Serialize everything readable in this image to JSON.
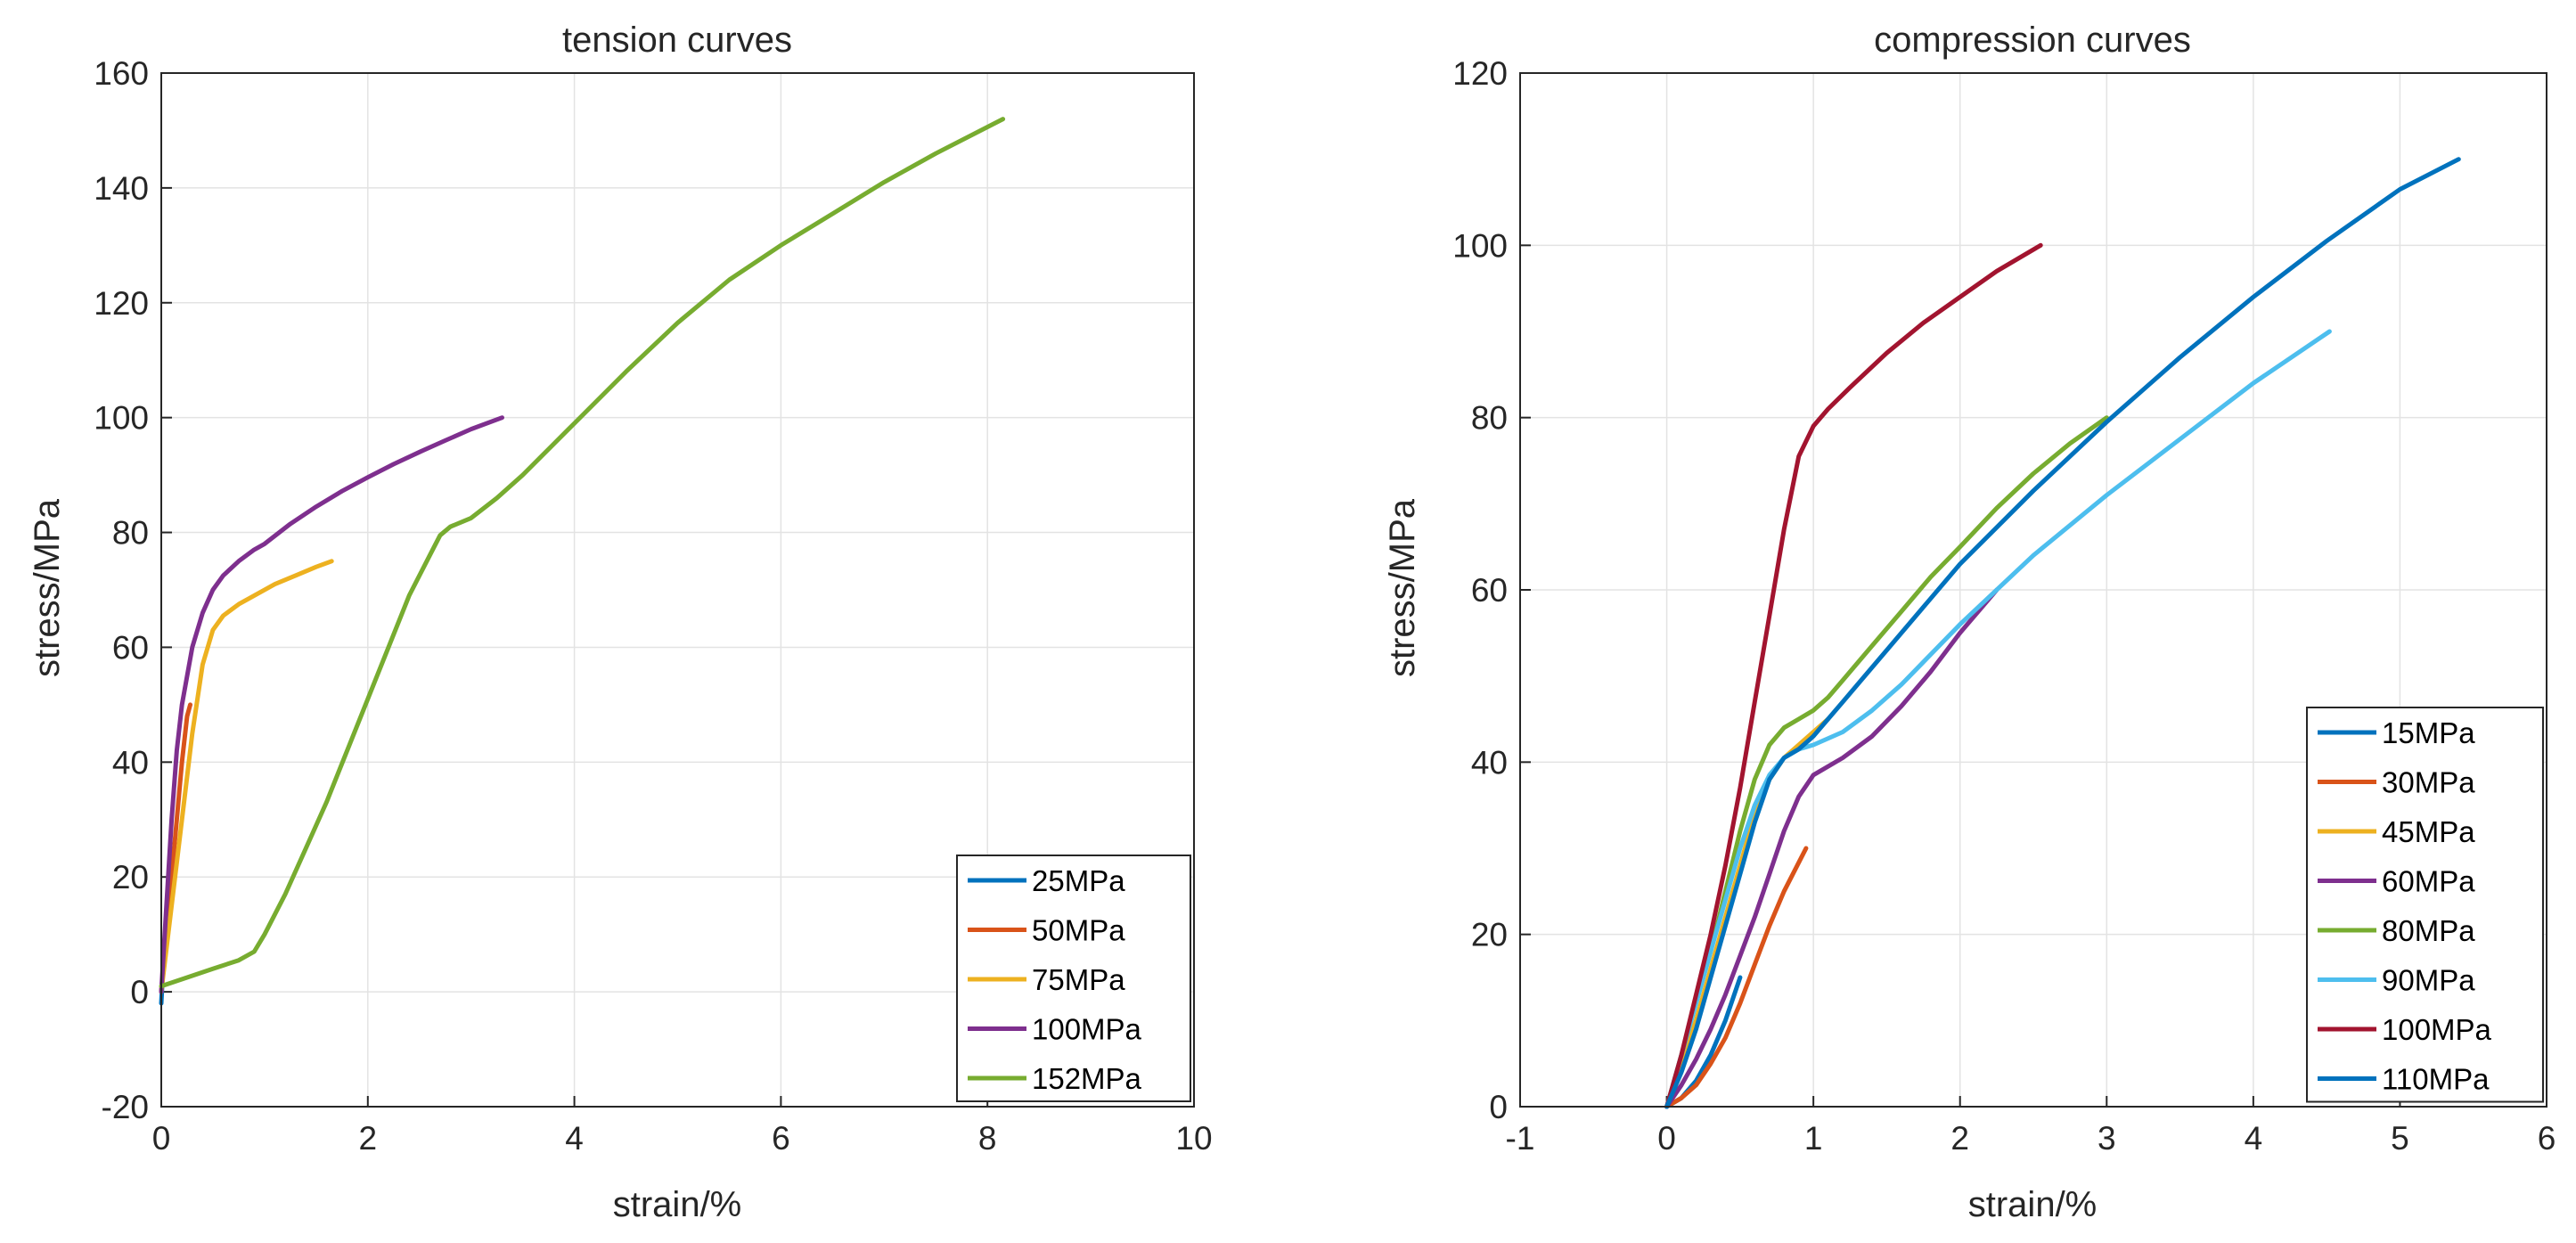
{
  "chart_data": [
    {
      "type": "line",
      "title": "tension curves",
      "xlabel": "strain/%",
      "ylabel": "stress/MPa",
      "xlim": [
        0,
        10
      ],
      "ylim": [
        -20,
        160
      ],
      "xticks": [
        0,
        2,
        4,
        6,
        8,
        10
      ],
      "yticks": [
        -20,
        0,
        20,
        40,
        60,
        80,
        100,
        120,
        140,
        160
      ],
      "xtick_labels": [
        "0",
        "2",
        "4",
        "6",
        "8",
        "10"
      ],
      "ytick_labels": [
        "-20",
        "0",
        "20",
        "40",
        "60",
        "80",
        "100",
        "120",
        "140",
        "160"
      ],
      "grid": true,
      "legend_position": "bottom-right",
      "series": [
        {
          "name": "25MPa",
          "color": "#0072BD",
          "x": [
            0,
            0.02,
            0.05,
            0.08,
            0.12
          ],
          "y": [
            -2,
            5,
            12,
            19,
            25
          ]
        },
        {
          "name": "50MPa",
          "color": "#D95319",
          "x": [
            0,
            0.05,
            0.1,
            0.15,
            0.2,
            0.25,
            0.28
          ],
          "y": [
            0,
            10,
            20,
            30,
            40,
            48,
            50
          ]
        },
        {
          "name": "75MPa",
          "color": "#EDB120",
          "x": [
            0,
            0.1,
            0.2,
            0.3,
            0.4,
            0.5,
            0.6,
            0.75,
            0.9,
            1.1,
            1.3,
            1.5,
            1.65
          ],
          "y": [
            0,
            15,
            30,
            45,
            57,
            63,
            65.5,
            67.5,
            69,
            71,
            72.5,
            74,
            75
          ]
        },
        {
          "name": "100MPa",
          "color": "#7E2F8E",
          "x": [
            0,
            0.05,
            0.1,
            0.15,
            0.2,
            0.3,
            0.4,
            0.5,
            0.6,
            0.75,
            0.9,
            1.0,
            1.25,
            1.5,
            1.75,
            2.0,
            2.25,
            2.5,
            2.75,
            3.0,
            3.3
          ],
          "y": [
            0,
            15,
            30,
            42,
            50,
            60,
            66,
            70,
            72.5,
            75,
            77,
            78,
            81.5,
            84.5,
            87.2,
            89.6,
            91.9,
            94,
            96,
            98,
            100
          ]
        },
        {
          "name": "152MPa",
          "color": "#77AC30",
          "x": [
            0,
            0.25,
            0.5,
            0.75,
            0.9,
            1.0,
            1.2,
            1.4,
            1.6,
            1.8,
            2.0,
            2.2,
            2.4,
            2.6,
            2.7,
            2.8,
            3.0,
            3.25,
            3.5,
            3.75,
            4.0,
            4.5,
            5.0,
            5.5,
            6.0,
            6.5,
            7.0,
            7.5,
            8.15
          ],
          "y": [
            1,
            2.5,
            4,
            5.5,
            7,
            10,
            17,
            25,
            33,
            42,
            51,
            60,
            69,
            76,
            79.5,
            81,
            82.5,
            86,
            90,
            94.5,
            99,
            108,
            116.5,
            124,
            130,
            135.5,
            141,
            146,
            152
          ]
        }
      ]
    },
    {
      "type": "line",
      "title": "compression curves",
      "xlabel": "strain/%",
      "ylabel": "stress/MPa",
      "xlim": [
        -1,
        6
      ],
      "ylim": [
        0,
        120
      ],
      "xticks": [
        -1,
        0,
        1,
        2,
        3,
        4,
        5,
        6
      ],
      "yticks": [
        0,
        20,
        40,
        60,
        80,
        100,
        120
      ],
      "xtick_labels": [
        "-1",
        "0",
        "1",
        "2",
        "3",
        "4",
        "5",
        "6"
      ],
      "ytick_labels": [
        "0",
        "20",
        "40",
        "60",
        "80",
        "100",
        "120"
      ],
      "grid": true,
      "legend_position": "bottom-right",
      "series": [
        {
          "name": "15MPa",
          "color": "#0072BD",
          "x": [
            0,
            0.1,
            0.2,
            0.3,
            0.4,
            0.5
          ],
          "y": [
            0,
            1,
            3,
            6,
            10,
            15
          ]
        },
        {
          "name": "30MPa",
          "color": "#D95319",
          "x": [
            0,
            0.1,
            0.2,
            0.3,
            0.4,
            0.5,
            0.6,
            0.7,
            0.8,
            0.95
          ],
          "y": [
            0,
            1,
            2.5,
            5,
            8,
            12,
            16.5,
            21,
            25,
            30
          ]
        },
        {
          "name": "45MPa",
          "color": "#EDB120",
          "x": [
            0,
            0.1,
            0.2,
            0.3,
            0.4,
            0.5,
            0.6,
            0.7,
            0.8,
            0.9,
            1.0,
            1.1
          ],
          "y": [
            0,
            5,
            10,
            16,
            22,
            28,
            34,
            38,
            40.5,
            42,
            43.5,
            45
          ]
        },
        {
          "name": "60MPa",
          "color": "#7E2F8E",
          "x": [
            0,
            0.1,
            0.2,
            0.3,
            0.4,
            0.5,
            0.6,
            0.7,
            0.8,
            0.9,
            1.0,
            1.2,
            1.4,
            1.6,
            1.8,
            2.0,
            2.25
          ],
          "y": [
            0,
            2.5,
            5.5,
            9,
            13,
            17.5,
            22,
            27,
            32,
            36,
            38.5,
            40.5,
            43,
            46.5,
            50.5,
            55,
            60
          ]
        },
        {
          "name": "80MPa",
          "color": "#77AC30",
          "x": [
            0,
            0.1,
            0.2,
            0.3,
            0.4,
            0.5,
            0.6,
            0.7,
            0.8,
            0.9,
            1.0,
            1.1,
            1.2,
            1.4,
            1.6,
            1.8,
            2.0,
            2.25,
            2.5,
            2.75,
            3.0
          ],
          "y": [
            0,
            6,
            12,
            18,
            25,
            32,
            38,
            42,
            44,
            45,
            46,
            47.5,
            49.5,
            53.5,
            57.5,
            61.5,
            65,
            69.5,
            73.5,
            77,
            80
          ]
        },
        {
          "name": "90MPa",
          "color": "#4DBEEE",
          "x": [
            0,
            0.1,
            0.2,
            0.3,
            0.4,
            0.5,
            0.6,
            0.7,
            0.8,
            0.9,
            1.0,
            1.2,
            1.4,
            1.6,
            1.8,
            2.0,
            2.5,
            3.0,
            3.5,
            4.0,
            4.52
          ],
          "y": [
            0,
            6,
            12,
            18,
            24,
            30,
            35,
            38.5,
            40.5,
            41.5,
            42,
            43.5,
            46,
            49,
            52.5,
            56,
            64,
            71,
            77.5,
            84,
            90
          ]
        },
        {
          "name": "100MPa",
          "color": "#A2142F",
          "x": [
            0,
            0.1,
            0.2,
            0.3,
            0.4,
            0.5,
            0.6,
            0.7,
            0.8,
            0.9,
            1.0,
            1.1,
            1.25,
            1.5,
            1.75,
            2.0,
            2.25,
            2.55
          ],
          "y": [
            0,
            6,
            13,
            20,
            28,
            37,
            47,
            57,
            67,
            75.5,
            79,
            81,
            83.5,
            87.5,
            91,
            94,
            97,
            100
          ]
        },
        {
          "name": "110MPa",
          "color": "#0072BD",
          "x": [
            0,
            0.1,
            0.2,
            0.3,
            0.4,
            0.5,
            0.6,
            0.7,
            0.8,
            0.9,
            1.0,
            1.2,
            1.5,
            2.0,
            2.5,
            3.0,
            3.5,
            4.0,
            4.5,
            5.0,
            5.4
          ],
          "y": [
            0,
            4,
            9,
            15,
            21,
            27,
            33,
            38,
            40.5,
            41.5,
            43,
            47,
            53,
            63,
            71.5,
            79.5,
            87,
            94,
            100.5,
            106.5,
            110
          ]
        }
      ]
    }
  ]
}
